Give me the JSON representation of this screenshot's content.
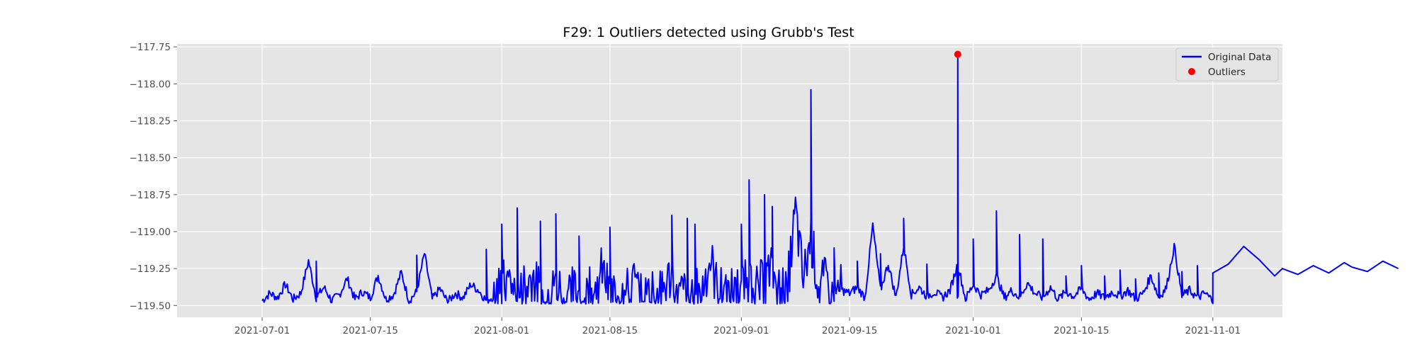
{
  "chart_data": {
    "type": "line",
    "title": "F29: 1 Outliers detected using Grubb's Test",
    "xlabel": "",
    "ylabel": "",
    "x_range": [
      "2021-06-20",
      "2021-11-10"
    ],
    "ylim": [
      -119.58,
      -117.73
    ],
    "x_ticks": [
      "2021-07-01",
      "2021-07-15",
      "2021-08-01",
      "2021-08-15",
      "2021-09-01",
      "2021-09-15",
      "2021-10-01",
      "2021-10-15",
      "2021-11-01"
    ],
    "y_ticks": [
      -119.5,
      -119.25,
      -119.0,
      -118.75,
      -118.5,
      -118.25,
      -118.0,
      -117.75
    ],
    "y_tick_labels": [
      "−119.50",
      "−119.25",
      "−119.00",
      "−118.75",
      "−118.50",
      "−118.25",
      "−118.00",
      "−117.75"
    ],
    "grid": true,
    "legend_position": "upper right",
    "legend": [
      {
        "label": "Original Data",
        "marker": "line",
        "color": "#0000ff"
      },
      {
        "label": "Outliers",
        "marker": "dot",
        "color": "#ff0000"
      }
    ],
    "series": [
      {
        "name": "Original Data",
        "color": "#0000ff",
        "points": [
          [
            "2021-07-01",
            -119.47
          ],
          [
            "2021-07-02",
            -119.42
          ],
          [
            "2021-07-03",
            -119.45
          ],
          [
            "2021-07-04",
            -119.36
          ],
          [
            "2021-07-05",
            -119.46
          ],
          [
            "2021-07-06",
            -119.42
          ],
          [
            "2021-07-07",
            -119.2
          ],
          [
            "2021-07-08",
            -119.45
          ],
          [
            "2021-07-09",
            -119.38
          ],
          [
            "2021-07-10",
            -119.47
          ],
          [
            "2021-07-11",
            -119.43
          ],
          [
            "2021-07-12",
            -119.32
          ],
          [
            "2021-07-13",
            -119.46
          ],
          [
            "2021-07-14",
            -119.41
          ],
          [
            "2021-07-15",
            -119.45
          ],
          [
            "2021-07-16",
            -119.3
          ],
          [
            "2021-07-17",
            -119.46
          ],
          [
            "2021-07-18",
            -119.43
          ],
          [
            "2021-07-19",
            -119.28
          ],
          [
            "2021-07-20",
            -119.47
          ],
          [
            "2021-07-21",
            -119.41
          ],
          [
            "2021-07-22",
            -119.15
          ],
          [
            "2021-07-23",
            -119.46
          ],
          [
            "2021-07-24",
            -119.39
          ],
          [
            "2021-07-25",
            -119.48
          ],
          [
            "2021-07-26",
            -119.42
          ],
          [
            "2021-07-27",
            -119.45
          ],
          [
            "2021-07-28",
            -119.36
          ],
          [
            "2021-07-29",
            -119.4
          ],
          [
            "2021-07-30",
            -119.47
          ],
          [
            "2021-07-31",
            -119.44
          ],
          [
            "2021-08-01",
            -119.38
          ],
          [
            "2021-08-02",
            -119.35
          ],
          [
            "2021-08-03",
            -119.46
          ],
          [
            "2021-08-04",
            -119.41
          ],
          [
            "2021-08-05",
            -119.3
          ],
          [
            "2021-08-06",
            -119.47
          ],
          [
            "2021-08-07",
            -119.42
          ],
          [
            "2021-08-08",
            -119.38
          ],
          [
            "2021-08-09",
            -119.45
          ],
          [
            "2021-08-10",
            -119.4
          ],
          [
            "2021-08-11",
            -119.46
          ],
          [
            "2021-08-12",
            -119.42
          ],
          [
            "2021-08-13",
            -119.45
          ],
          [
            "2021-08-14",
            -119.27
          ],
          [
            "2021-08-15",
            -119.46
          ],
          [
            "2021-08-16",
            -119.41
          ],
          [
            "2021-08-17",
            -119.45
          ],
          [
            "2021-08-18",
            -119.35
          ],
          [
            "2021-08-19",
            -119.47
          ],
          [
            "2021-08-20",
            -119.42
          ],
          [
            "2021-08-21",
            -119.44
          ],
          [
            "2021-08-22",
            -119.39
          ],
          [
            "2021-08-23",
            -119.3
          ],
          [
            "2021-08-24",
            -119.46
          ],
          [
            "2021-08-25",
            -119.4
          ],
          [
            "2021-08-26",
            -119.44
          ],
          [
            "2021-08-27",
            -119.38
          ],
          [
            "2021-08-28",
            -119.2
          ],
          [
            "2021-08-29",
            -119.43
          ],
          [
            "2021-08-30",
            -119.36
          ],
          [
            "2021-08-31",
            -119.45
          ],
          [
            "2021-09-01",
            -119.37
          ],
          [
            "2021-09-02",
            -119.39
          ],
          [
            "2021-09-03",
            -119.42
          ],
          [
            "2021-09-04",
            -119.34
          ],
          [
            "2021-09-05",
            -119.28
          ],
          [
            "2021-09-06",
            -119.44
          ],
          [
            "2021-09-07",
            -119.38
          ],
          [
            "2021-09-08",
            -118.88
          ],
          [
            "2021-09-09",
            -119.35
          ],
          [
            "2021-09-10",
            -119.05
          ],
          [
            "2021-09-11",
            -119.4
          ],
          [
            "2021-09-12",
            -119.35
          ],
          [
            "2021-09-13",
            -119.44
          ],
          [
            "2021-09-14",
            -119.4
          ],
          [
            "2021-09-15",
            -119.42
          ],
          [
            "2021-09-16",
            -119.38
          ],
          [
            "2021-09-17",
            -119.45
          ],
          [
            "2021-09-18",
            -118.96
          ],
          [
            "2021-09-19",
            -119.4
          ],
          [
            "2021-09-20",
            -119.22
          ],
          [
            "2021-09-21",
            -119.45
          ],
          [
            "2021-09-22",
            -119.1
          ],
          [
            "2021-09-23",
            -119.43
          ],
          [
            "2021-09-24",
            -119.38
          ],
          [
            "2021-09-25",
            -119.44
          ],
          [
            "2021-09-26",
            -119.41
          ],
          [
            "2021-09-27",
            -119.45
          ],
          [
            "2021-09-28",
            -119.4
          ],
          [
            "2021-09-29",
            -119.22
          ],
          [
            "2021-09-30",
            -119.46
          ],
          [
            "2021-10-01",
            -119.36
          ],
          [
            "2021-10-02",
            -119.43
          ],
          [
            "2021-10-03",
            -119.4
          ],
          [
            "2021-10-04",
            -119.3
          ],
          [
            "2021-10-05",
            -119.45
          ],
          [
            "2021-10-06",
            -119.4
          ],
          [
            "2021-10-07",
            -119.45
          ],
          [
            "2021-10-08",
            -119.35
          ],
          [
            "2021-10-09",
            -119.42
          ],
          [
            "2021-10-10",
            -119.45
          ],
          [
            "2021-10-11",
            -119.38
          ],
          [
            "2021-10-12",
            -119.46
          ],
          [
            "2021-10-13",
            -119.41
          ],
          [
            "2021-10-14",
            -119.44
          ],
          [
            "2021-10-15",
            -119.39
          ],
          [
            "2021-10-16",
            -119.46
          ],
          [
            "2021-10-17",
            -119.42
          ],
          [
            "2021-10-18",
            -119.45
          ],
          [
            "2021-10-19",
            -119.41
          ],
          [
            "2021-10-20",
            -119.44
          ],
          [
            "2021-10-21",
            -119.4
          ],
          [
            "2021-10-22",
            -119.46
          ],
          [
            "2021-10-23",
            -119.42
          ],
          [
            "2021-10-24",
            -119.3
          ],
          [
            "2021-10-25",
            -119.45
          ],
          [
            "2021-10-26",
            -119.38
          ],
          [
            "2021-10-27",
            -119.1
          ],
          [
            "2021-10-28",
            -119.44
          ],
          [
            "2021-10-29",
            -119.4
          ],
          [
            "2021-10-30",
            -119.45
          ],
          [
            "2021-10-31",
            -119.42
          ],
          [
            "2021-11-01",
            -119.47
          ]
        ],
        "peaks": [
          [
            "2021-07-08",
            -119.2
          ],
          [
            "2021-07-21",
            -119.16
          ],
          [
            "2021-07-30",
            -119.12
          ],
          [
            "2021-08-01",
            -118.95
          ],
          [
            "2021-08-03",
            -118.84
          ],
          [
            "2021-08-06",
            -118.93
          ],
          [
            "2021-08-08",
            -118.88
          ],
          [
            "2021-08-11",
            -119.03
          ],
          [
            "2021-08-15",
            -118.97
          ],
          [
            "2021-08-23",
            -118.89
          ],
          [
            "2021-08-25",
            -118.91
          ],
          [
            "2021-08-26",
            -118.95
          ],
          [
            "2021-09-01",
            -118.95
          ],
          [
            "2021-09-02",
            -118.65
          ],
          [
            "2021-09-04",
            -118.75
          ],
          [
            "2021-09-05",
            -118.83
          ],
          [
            "2021-09-10",
            -118.04
          ],
          [
            "2021-09-13",
            -119.11
          ],
          [
            "2021-09-16",
            -119.2
          ],
          [
            "2021-09-19",
            -119.15
          ],
          [
            "2021-09-22",
            -118.91
          ],
          [
            "2021-09-25",
            -119.22
          ],
          [
            "2021-10-01",
            -119.05
          ],
          [
            "2021-10-04",
            -118.86
          ],
          [
            "2021-10-07",
            -119.02
          ],
          [
            "2021-10-10",
            -119.05
          ],
          [
            "2021-10-13",
            -119.3
          ],
          [
            "2021-10-15",
            -119.23
          ],
          [
            "2021-10-18",
            -119.3
          ],
          [
            "2021-10-20",
            -119.26
          ],
          [
            "2021-10-22",
            -119.32
          ],
          [
            "2021-10-25",
            -119.28
          ],
          [
            "2021-10-28",
            -119.27
          ],
          [
            "2021-10-30",
            -119.23
          ],
          [
            "2021-11-01",
            -119.28
          ],
          [
            "2021-11-03",
            -119.22
          ],
          [
            "2021-11-05",
            -119.1
          ],
          [
            "2021-11-07",
            -119.19
          ],
          [
            "2021-11-09",
            -119.3
          ],
          [
            "2021-11-10",
            -119.25
          ],
          [
            "2021-11-12",
            -119.29
          ],
          [
            "2021-11-14",
            -119.23
          ],
          [
            "2021-11-16",
            -119.28
          ],
          [
            "2021-11-18",
            -119.21
          ],
          [
            "2021-11-19",
            -119.24
          ],
          [
            "2021-11-21",
            -119.27
          ],
          [
            "2021-11-23",
            -119.2
          ],
          [
            "2021-11-25",
            -119.25
          ]
        ]
      },
      {
        "name": "Outliers",
        "color": "#ff0000",
        "points": [
          [
            "2021-09-29",
            -117.8
          ]
        ]
      }
    ]
  }
}
